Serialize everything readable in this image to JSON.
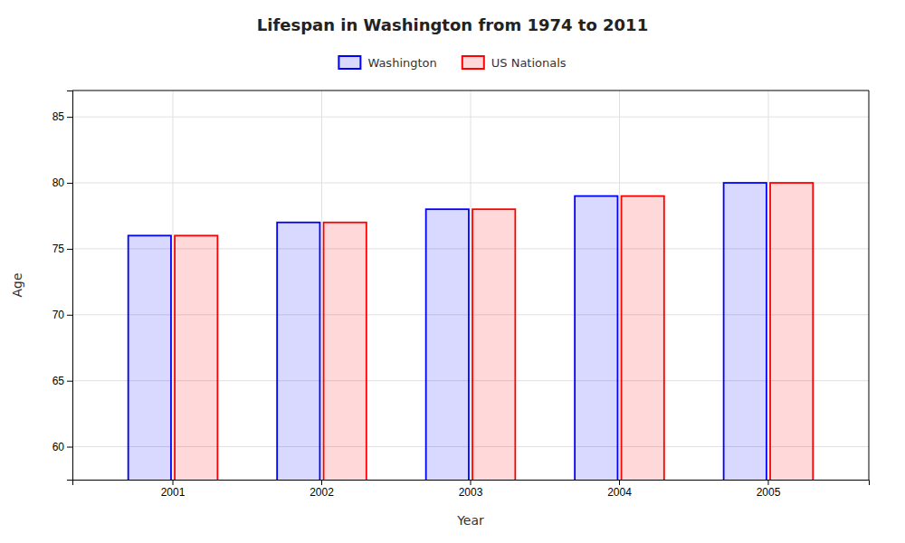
{
  "chart_data": {
    "type": "bar",
    "title": "Lifespan in Washington from 1974 to 2011",
    "x_label": "Year",
    "y_label": "Age",
    "categories": [
      "2001",
      "2002",
      "2003",
      "2004",
      "2005"
    ],
    "series": [
      {
        "name": "Washington",
        "color": "#0000ff",
        "values": [
          76,
          77,
          78,
          79,
          80
        ]
      },
      {
        "name": "US Nationals",
        "color": "#ff0000",
        "values": [
          76,
          77,
          78,
          79,
          80
        ]
      }
    ],
    "ylim": [
      57.5,
      87
    ],
    "yticks": [
      60,
      65,
      70,
      75,
      80,
      85
    ],
    "grid": true,
    "legend": "top"
  }
}
